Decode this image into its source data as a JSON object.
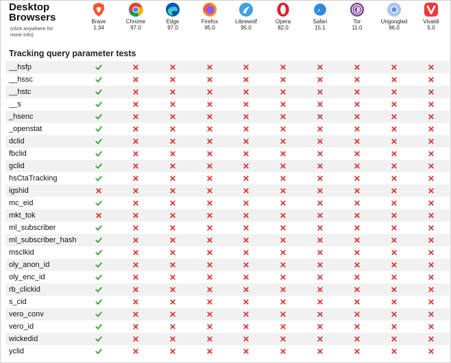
{
  "header": {
    "title_line1": "Desktop",
    "title_line2": "Browsers",
    "subtitle_line1": "(click anywhere for",
    "subtitle_line2": "more info)"
  },
  "browsers": [
    {
      "name": "Brave",
      "version": "1.34",
      "icon": "brave-icon",
      "color": "#fb542b"
    },
    {
      "name": "Chrome",
      "version": "97.0",
      "icon": "chrome-icon",
      "color": "#4285f4"
    },
    {
      "name": "Edge",
      "version": "97.0",
      "icon": "edge-icon",
      "color": "#1fa0e0"
    },
    {
      "name": "Firefox",
      "version": "95.0",
      "icon": "firefox-icon",
      "color": "#ff7139"
    },
    {
      "name": "Librewolf",
      "version": "95.0",
      "icon": "librewolf-icon",
      "color": "#3da2e5"
    },
    {
      "name": "Opera",
      "version": "82.0",
      "icon": "opera-icon",
      "color": "#e0202e"
    },
    {
      "name": "Safari",
      "version": "15.1",
      "icon": "safari-icon",
      "color": "#2a8be0"
    },
    {
      "name": "Tor",
      "version": "11.0",
      "icon": "tor-icon",
      "color": "#7d4698"
    },
    {
      "name": "Ungoogled",
      "version": "96.0",
      "icon": "ungoogled-icon",
      "color": "#5d8fe0"
    },
    {
      "name": "Vivaldi",
      "version": "5.0",
      "icon": "vivaldi-icon",
      "color": "#ef3939"
    }
  ],
  "section": {
    "title": "Tracking query parameter tests"
  },
  "colors": {
    "pass": "#3aa335",
    "fail": "#d93636",
    "alt_row": "#f1f1f1"
  },
  "tests": [
    {
      "label": "__hsfp",
      "results": [
        "pass",
        "fail",
        "fail",
        "fail",
        "fail",
        "fail",
        "fail",
        "fail",
        "fail",
        "fail"
      ]
    },
    {
      "label": "__hssc",
      "results": [
        "pass",
        "fail",
        "fail",
        "fail",
        "fail",
        "fail",
        "fail",
        "fail",
        "fail",
        "fail"
      ]
    },
    {
      "label": "__hstc",
      "results": [
        "pass",
        "fail",
        "fail",
        "fail",
        "fail",
        "fail",
        "fail",
        "fail",
        "fail",
        "fail"
      ]
    },
    {
      "label": "__s",
      "results": [
        "pass",
        "fail",
        "fail",
        "fail",
        "fail",
        "fail",
        "fail",
        "fail",
        "fail",
        "fail"
      ]
    },
    {
      "label": "_hsenc",
      "results": [
        "pass",
        "fail",
        "fail",
        "fail",
        "fail",
        "fail",
        "fail",
        "fail",
        "fail",
        "fail"
      ]
    },
    {
      "label": "_openstat",
      "results": [
        "pass",
        "fail",
        "fail",
        "fail",
        "fail",
        "fail",
        "fail",
        "fail",
        "fail",
        "fail"
      ]
    },
    {
      "label": "dclid",
      "results": [
        "pass",
        "fail",
        "fail",
        "fail",
        "fail",
        "fail",
        "fail",
        "fail",
        "fail",
        "fail"
      ]
    },
    {
      "label": "fbclid",
      "results": [
        "pass",
        "fail",
        "fail",
        "fail",
        "fail",
        "fail",
        "fail",
        "fail",
        "fail",
        "fail"
      ]
    },
    {
      "label": "gclid",
      "results": [
        "pass",
        "fail",
        "fail",
        "fail",
        "fail",
        "fail",
        "fail",
        "fail",
        "fail",
        "fail"
      ]
    },
    {
      "label": "hsCtaTracking",
      "results": [
        "pass",
        "fail",
        "fail",
        "fail",
        "fail",
        "fail",
        "fail",
        "fail",
        "fail",
        "fail"
      ]
    },
    {
      "label": "igshid",
      "results": [
        "fail",
        "fail",
        "fail",
        "fail",
        "fail",
        "fail",
        "fail",
        "fail",
        "fail",
        "fail"
      ]
    },
    {
      "label": "mc_eid",
      "results": [
        "pass",
        "fail",
        "fail",
        "fail",
        "fail",
        "fail",
        "fail",
        "fail",
        "fail",
        "fail"
      ]
    },
    {
      "label": "mkt_tok",
      "results": [
        "fail",
        "fail",
        "fail",
        "fail",
        "fail",
        "fail",
        "fail",
        "fail",
        "fail",
        "fail"
      ]
    },
    {
      "label": "ml_subscriber",
      "results": [
        "pass",
        "fail",
        "fail",
        "fail",
        "fail",
        "fail",
        "fail",
        "fail",
        "fail",
        "fail"
      ]
    },
    {
      "label": "ml_subscriber_hash",
      "results": [
        "pass",
        "fail",
        "fail",
        "fail",
        "fail",
        "fail",
        "fail",
        "fail",
        "fail",
        "fail"
      ]
    },
    {
      "label": "msclkid",
      "results": [
        "pass",
        "fail",
        "fail",
        "fail",
        "fail",
        "fail",
        "fail",
        "fail",
        "fail",
        "fail"
      ]
    },
    {
      "label": "oly_anon_id",
      "results": [
        "pass",
        "fail",
        "fail",
        "fail",
        "fail",
        "fail",
        "fail",
        "fail",
        "fail",
        "fail"
      ]
    },
    {
      "label": "oly_enc_id",
      "results": [
        "pass",
        "fail",
        "fail",
        "fail",
        "fail",
        "fail",
        "fail",
        "fail",
        "fail",
        "fail"
      ]
    },
    {
      "label": "rb_clickid",
      "results": [
        "pass",
        "fail",
        "fail",
        "fail",
        "fail",
        "fail",
        "fail",
        "fail",
        "fail",
        "fail"
      ]
    },
    {
      "label": "s_cid",
      "results": [
        "pass",
        "fail",
        "fail",
        "fail",
        "fail",
        "fail",
        "fail",
        "fail",
        "fail",
        "fail"
      ]
    },
    {
      "label": "vero_conv",
      "results": [
        "pass",
        "fail",
        "fail",
        "fail",
        "fail",
        "fail",
        "fail",
        "fail",
        "fail",
        "fail"
      ]
    },
    {
      "label": "vero_id",
      "results": [
        "pass",
        "fail",
        "fail",
        "fail",
        "fail",
        "fail",
        "fail",
        "fail",
        "fail",
        "fail"
      ]
    },
    {
      "label": "wickedid",
      "results": [
        "pass",
        "fail",
        "fail",
        "fail",
        "fail",
        "fail",
        "fail",
        "fail",
        "fail",
        "fail"
      ]
    },
    {
      "label": "yclid",
      "results": [
        "pass",
        "fail",
        "fail",
        "fail",
        "fail",
        "fail",
        "fail",
        "fail",
        "fail",
        "fail"
      ]
    }
  ]
}
